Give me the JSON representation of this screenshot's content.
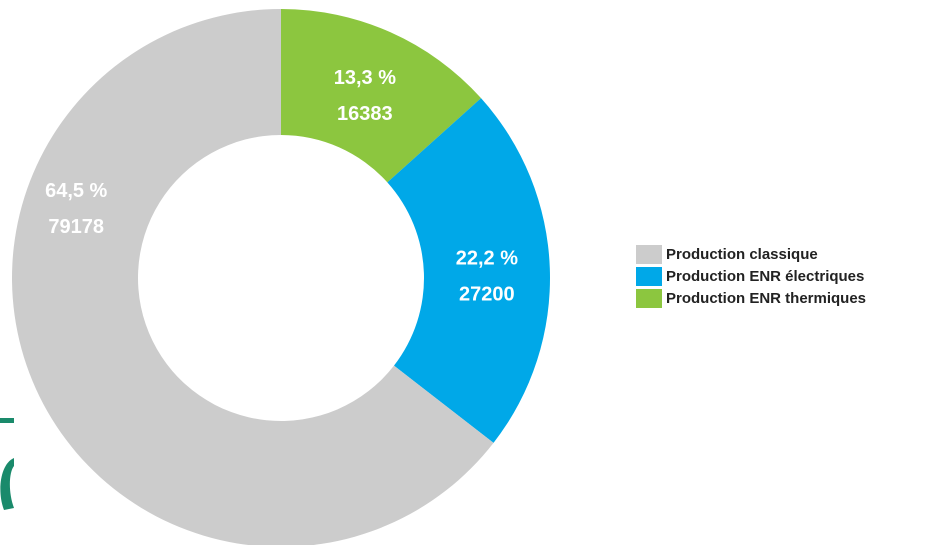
{
  "chart_data": {
    "type": "pie",
    "donut": true,
    "title": "",
    "series": [
      {
        "name": "Production classique",
        "value": 79178,
        "percent_label": "64,5 %",
        "value_label": "79178",
        "color": "#cccccc"
      },
      {
        "name": "Production ENR électriques",
        "value": 27200,
        "percent_label": "22,2 %",
        "value_label": "27200",
        "color": "#00a8e8"
      },
      {
        "name": "Production ENR thermiques",
        "value": 16383,
        "percent_label": "13,3 %",
        "value_label": "16383",
        "color": "#8cc63f"
      }
    ],
    "start": "top",
    "direction": "clockwise",
    "slice_order": [
      "Production ENR thermiques",
      "Production ENR électriques",
      "Production classique"
    ],
    "legend_position": "right",
    "labels_on_slices": true
  },
  "decoration": {
    "corner_mark_color": "#1a8a6b"
  }
}
